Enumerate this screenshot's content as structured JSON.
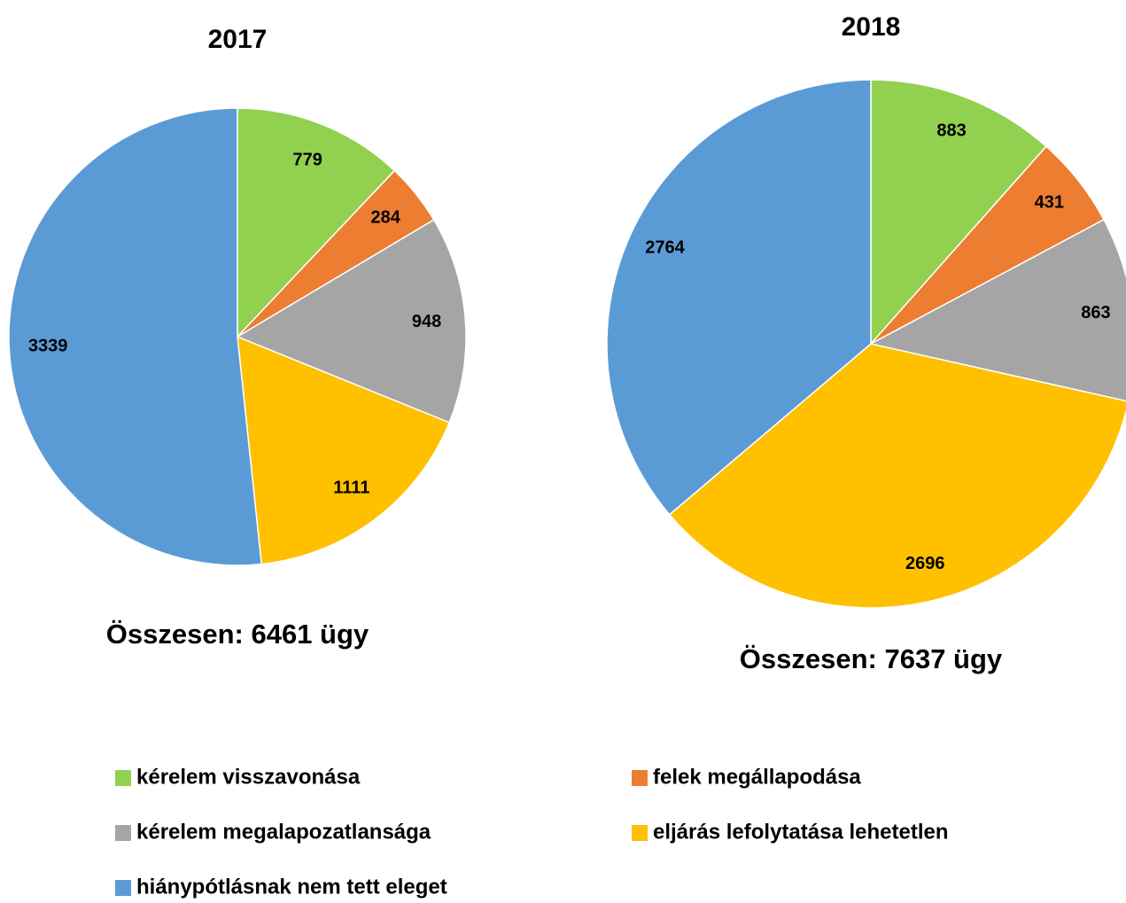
{
  "chart_data": [
    {
      "type": "pie",
      "title": "2017",
      "categories": [
        "kérelem visszavonása",
        "felek megállapodása",
        "kérelem megalapozatlansága",
        "eljárás lefolytatása lehetetlen",
        "hiánypótlásnak nem tett eleget"
      ],
      "values": [
        779,
        284,
        948,
        1111,
        3339
      ],
      "colors": [
        "#92d050",
        "#ed7d31",
        "#a5a5a5",
        "#ffc000",
        "#5b9bd5"
      ],
      "annotation": "Összesen: 6461 ügy"
    },
    {
      "type": "pie",
      "title": "2018",
      "categories": [
        "kérelem visszavonása",
        "felek megállapodása",
        "kérelem megalapozatlansága",
        "eljárás lefolytatása lehetetlen",
        "hiánypótlásnak nem tett eleget"
      ],
      "values": [
        883,
        431,
        863,
        2696,
        2764
      ],
      "colors": [
        "#92d050",
        "#ed7d31",
        "#a5a5a5",
        "#ffc000",
        "#5b9bd5"
      ],
      "annotation": "Összesen: 7637 ügy"
    }
  ]
}
